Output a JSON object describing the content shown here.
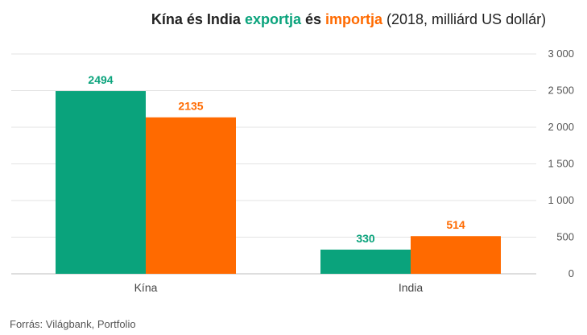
{
  "title": {
    "part1": "Kína és India ",
    "exp_word": "exportja",
    "mid": " és ",
    "imp_word": "importja",
    "paren": " (2018, milliárd US dollár)"
  },
  "colors": {
    "export": "#0aa37c",
    "import": "#ff6a00",
    "grid": "#e3e3e3",
    "tick": "#555555"
  },
  "source": "Forrás: Világbank, Portfolio",
  "chart_data": {
    "type": "bar",
    "categories": [
      "Kína",
      "India"
    ],
    "series": [
      {
        "key": "export",
        "values": [
          2494,
          330
        ]
      },
      {
        "key": "import",
        "values": [
          2135,
          514
        ]
      }
    ],
    "data_labels": [
      [
        "2494",
        "330"
      ],
      [
        "2135",
        "514"
      ]
    ],
    "ylim": [
      0,
      3000
    ],
    "yticks": [
      0,
      500,
      1000,
      1500,
      2000,
      2500,
      3000
    ],
    "ytick_labels": [
      "0",
      "500",
      "1 000",
      "1 500",
      "2 000",
      "2 500",
      "3 000"
    ],
    "grid": true,
    "y_axis_side": "right"
  }
}
